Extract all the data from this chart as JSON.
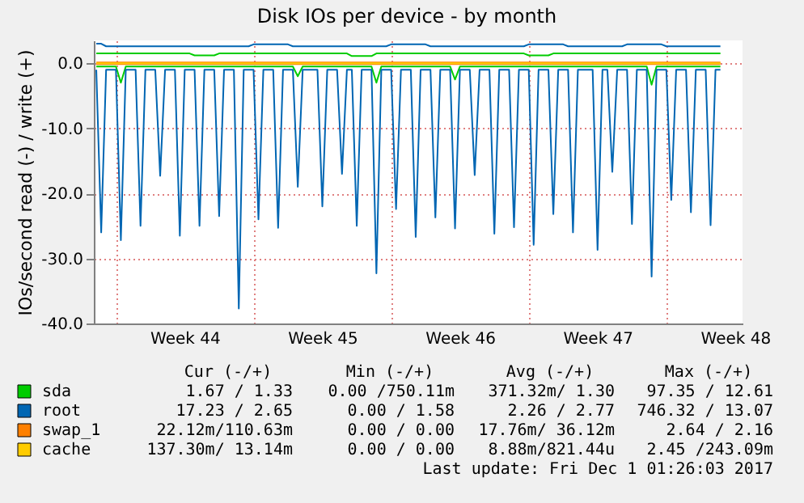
{
  "chart_data": {
    "type": "line",
    "title": "Disk IOs per device - by month",
    "ylabel": "IOs/second read (-) / write (+)",
    "categories": [
      null,
      null,
      null,
      null,
      null,
      null,
      null,
      null,
      null,
      null,
      null,
      null,
      null,
      null,
      null,
      null,
      null,
      null,
      "Week 44",
      null,
      null,
      null,
      null,
      null,
      null,
      null,
      null,
      null,
      null,
      null,
      null,
      null,
      null,
      null,
      null,
      null,
      null,
      null,
      null,
      null,
      null,
      null,
      null,
      null,
      null,
      null,
      "Week 45",
      null,
      null,
      null,
      null,
      null,
      null,
      null,
      null,
      null,
      null,
      null,
      null,
      null,
      null,
      null,
      null,
      null,
      null,
      null,
      null,
      null,
      null,
      null,
      null,
      null,
      null,
      null,
      "Week 46",
      null,
      null,
      null,
      null,
      null,
      null,
      null,
      null,
      null,
      null,
      null,
      null,
      null,
      null,
      null,
      null,
      null,
      null,
      null,
      null,
      null,
      null,
      null,
      null,
      null,
      null,
      null,
      "Week 47",
      null,
      null,
      null,
      null,
      null,
      null,
      null,
      null,
      null,
      null,
      null,
      null,
      null,
      null,
      null,
      null,
      null,
      null,
      null,
      null,
      null,
      null,
      null,
      null,
      null,
      null,
      null,
      "Week 48",
      null
    ],
    "ylim": [
      -40,
      3.5
    ],
    "yticks": [
      {
        "value": -40,
        "label": "-40.0"
      },
      {
        "value": -30,
        "label": "-30.0"
      },
      {
        "value": -20,
        "label": "-20.0"
      },
      {
        "value": -10,
        "label": "-10.0"
      },
      {
        "value": 0,
        "label": "0.0"
      }
    ],
    "grid": true,
    "legend": "bottom",
    "series": [
      {
        "name": "sda",
        "color": "#00cc00",
        "values": [
          -0.5,
          -0.5,
          -0.5,
          -0.5,
          -0.5,
          -3,
          -0.5,
          -0.5,
          -0.5,
          -0.5,
          -0.5,
          -0.5,
          -0.5,
          -0.5,
          -0.5,
          -0.5,
          -0.5,
          -0.5,
          -0.5,
          -0.5,
          -0.5,
          -0.5,
          -0.5,
          -0.5,
          -0.5,
          -0.5,
          -0.5,
          -0.5,
          -0.5,
          -0.5,
          -0.5,
          -0.5,
          -0.5,
          -0.5,
          -0.5,
          -0.5,
          -0.5,
          -0.5,
          -0.5,
          -0.5,
          -0.5,
          -2,
          -0.5,
          -0.5,
          -0.5,
          -0.5,
          -0.5,
          -0.5,
          -0.5,
          -0.5,
          -0.5,
          -0.5,
          -0.5,
          -0.5,
          -0.5,
          -0.5,
          -0.5,
          -3,
          -0.5,
          -0.5,
          -0.5,
          -0.5,
          -0.5,
          -0.5,
          -0.5,
          -0.5,
          -0.5,
          -0.5,
          -0.5,
          -0.5,
          -0.5,
          -0.5,
          -0.5,
          -2.5,
          -0.5,
          -0.5,
          -0.5,
          -0.5,
          -0.5,
          -0.5,
          -0.5,
          -0.5,
          -0.5,
          -0.5,
          -0.5,
          -0.5,
          -0.5,
          -0.5,
          -0.5,
          -0.5,
          -0.5,
          -0.5,
          -0.5,
          -0.5,
          -0.5,
          -0.5,
          -0.5,
          -0.5,
          -0.5,
          -0.5,
          -0.5,
          -0.5,
          -0.5,
          -0.5,
          -0.5,
          -0.5,
          -0.5,
          -0.5,
          -0.5,
          -0.5,
          -0.5,
          -0.5,
          -0.5,
          -3.3,
          -0.5,
          -0.5,
          -0.5,
          -0.5,
          -0.5,
          -0.5,
          -0.5,
          -0.5,
          -0.5,
          -0.5,
          -0.5,
          -0.5,
          -0.5,
          -0.5,
          null,
          null,
          null,
          null
        ]
      },
      {
        "color": "#00cc00",
        "values": [
          1.5,
          1.5,
          1.5,
          1.5,
          1.5,
          1.5,
          1.5,
          1.5,
          1.5,
          1.5,
          1.5,
          1.5,
          1.5,
          1.5,
          1.5,
          1.5,
          1.5,
          1.5,
          1.5,
          1.5,
          1.2,
          1.2,
          1.2,
          1.2,
          1.2,
          1.5,
          1.5,
          1.5,
          1.5,
          1.5,
          1.5,
          1.5,
          1.5,
          1.5,
          1.5,
          1.5,
          1.5,
          1.5,
          1.5,
          1.5,
          1.5,
          1.5,
          1.5,
          1.5,
          1.5,
          1.5,
          1.5,
          1.5,
          1.5,
          1.5,
          1.5,
          1.5,
          1.1,
          1.1,
          1.1,
          1.1,
          1.1,
          1.5,
          1.5,
          1.5,
          1.5,
          1.5,
          1.5,
          1.5,
          1.5,
          1.5,
          1.5,
          1.5,
          1.5,
          1.5,
          1.5,
          1.5,
          1.5,
          1.5,
          1.5,
          1.5,
          1.5,
          1.5,
          1.5,
          1.5,
          1.5,
          1.5,
          1.5,
          1.5,
          1.5,
          1.5,
          1.5,
          1.5,
          1.2,
          1.2,
          1.2,
          1.2,
          1.2,
          1.5,
          1.5,
          1.5,
          1.5,
          1.5,
          1.5,
          1.5,
          1.5,
          1.5,
          1.5,
          1.5,
          1.5,
          1.5,
          1.5,
          1.5,
          1.5,
          1.5,
          1.5,
          1.5,
          1.5,
          1.5,
          1.5,
          1.5,
          1.5,
          1.5,
          1.5,
          1.5,
          1.5,
          1.5,
          1.5,
          1.5,
          1.5,
          1.5,
          1.5,
          1.5,
          null,
          null,
          null,
          null
        ]
      },
      {
        "name": "root",
        "color": "#0066b3",
        "values": [
          -1,
          -26,
          -1,
          -1,
          -1,
          -27.2,
          -1,
          -1,
          -1,
          -25,
          -1,
          -1,
          -1,
          -17.3,
          -1,
          -1,
          -1,
          -26.5,
          -1,
          -1,
          -1,
          -25,
          -1,
          -1,
          -1,
          -23.5,
          -1,
          -1,
          -1,
          -37.7,
          -1,
          -1,
          -1,
          -24,
          -1,
          -1,
          -1,
          -25.3,
          -1,
          -1,
          -1,
          -19,
          -1,
          -1,
          -1,
          -1,
          -22,
          -1,
          -1,
          -1,
          -17,
          -1,
          -1,
          -25,
          -1,
          -1,
          -1,
          -32.3,
          -1,
          -1,
          -1,
          -22.4,
          -1,
          -1,
          -1,
          -26.7,
          -1,
          -1,
          -1,
          -23.7,
          -1,
          -1,
          -1,
          -25.4,
          -1,
          -1,
          -1,
          -17.2,
          -1,
          -1,
          -1,
          -26.2,
          -1,
          -1,
          -1,
          -25.2,
          -1,
          -1,
          -1,
          -27.9,
          -1,
          -1,
          -1,
          -23.2,
          -1,
          -1,
          -1,
          -26,
          -1,
          -1,
          -1,
          -1,
          -28.7,
          -1,
          -1,
          -16.7,
          -1,
          -1,
          -1,
          -24.7,
          -1,
          -1,
          -1,
          -32.8,
          -1,
          -1,
          -1,
          -21,
          -1,
          -1,
          -1,
          -22.9,
          -1,
          -1,
          -1,
          -24.9,
          -1,
          -1,
          null,
          null,
          null,
          null
        ]
      },
      {
        "color": "#0066b3",
        "values": [
          3,
          3,
          2.6,
          2.6,
          2.6,
          2.6,
          2.6,
          2.6,
          2.6,
          2.6,
          2.6,
          2.6,
          2.6,
          2.6,
          2.6,
          2.6,
          2.6,
          2.6,
          2.6,
          2.6,
          2.6,
          2.6,
          2.6,
          2.6,
          2.6,
          2.6,
          2.6,
          2.6,
          2.6,
          2.6,
          2.6,
          2.6,
          2.9,
          2.9,
          2.9,
          2.9,
          2.9,
          2.9,
          2.9,
          2.9,
          2.6,
          2.6,
          2.6,
          2.6,
          2.6,
          2.6,
          2.6,
          2.6,
          2.6,
          2.6,
          2.6,
          2.6,
          2.6,
          2.6,
          2.6,
          2.6,
          2.6,
          2.6,
          2.6,
          2.6,
          2.9,
          2.9,
          2.9,
          2.9,
          2.9,
          2.9,
          2.9,
          2.9,
          2.6,
          2.6,
          2.6,
          2.6,
          2.6,
          2.6,
          2.6,
          2.6,
          2.6,
          2.6,
          2.6,
          2.6,
          2.6,
          2.6,
          2.6,
          2.6,
          2.6,
          2.6,
          2.6,
          2.6,
          2.9,
          2.9,
          2.9,
          2.9,
          2.9,
          2.9,
          2.9,
          2.9,
          2.6,
          2.6,
          2.6,
          2.6,
          2.6,
          2.6,
          2.6,
          2.6,
          2.6,
          2.6,
          2.6,
          2.6,
          2.9,
          2.9,
          2.9,
          2.9,
          2.9,
          2.9,
          2.9,
          2.9,
          2.6,
          2.6,
          2.6,
          2.6,
          2.6,
          2.6,
          2.6,
          2.6,
          2.6,
          2.6,
          2.6,
          2.6,
          null,
          null,
          null,
          null
        ]
      },
      {
        "name": "swap_1",
        "color": "#ff8000",
        "values": [
          0,
          0,
          0,
          0,
          0,
          0,
          0,
          0,
          0,
          0,
          0,
          0,
          0,
          0,
          0,
          0,
          0,
          0,
          0,
          0,
          0,
          0,
          0,
          0,
          0,
          0,
          0,
          0,
          0,
          0,
          0,
          0,
          0,
          0,
          0,
          0,
          0,
          0,
          0,
          0,
          0,
          0,
          0,
          0,
          0,
          0,
          0,
          0,
          0,
          0,
          0,
          0,
          0,
          0,
          0,
          0,
          0,
          0,
          0,
          0,
          0,
          0,
          0,
          0,
          0,
          0,
          0,
          0,
          0,
          0,
          0,
          0,
          0,
          0,
          0,
          0,
          0,
          0,
          0,
          0,
          0,
          0,
          0,
          0,
          0,
          0,
          0,
          0,
          0,
          0,
          0,
          0,
          0,
          0,
          0,
          0,
          0,
          0,
          0,
          0,
          0,
          0,
          0,
          0,
          0,
          0,
          0,
          0,
          0,
          0,
          0,
          0,
          0,
          0,
          0,
          0,
          0,
          0,
          0,
          0,
          0,
          0,
          0,
          0,
          0,
          0,
          0,
          0,
          null,
          null,
          null,
          null
        ]
      },
      {
        "name": "cache",
        "color": "#ffcc00",
        "values": [
          0,
          0,
          0,
          0,
          0,
          0,
          0,
          0,
          0,
          0,
          0,
          0,
          0,
          0,
          0,
          0,
          0,
          0,
          0,
          0,
          0,
          0,
          0,
          0,
          0,
          0,
          0,
          0,
          0,
          0,
          0,
          0,
          0,
          0,
          0,
          0,
          0,
          0,
          0,
          0,
          0,
          0,
          0,
          0,
          0,
          0,
          0,
          0,
          0,
          0,
          0,
          0,
          0,
          0,
          0,
          0,
          0,
          0,
          0,
          0,
          0,
          0,
          0,
          0,
          0,
          0,
          0,
          0,
          0,
          0,
          0,
          0,
          0,
          0,
          0,
          0,
          0,
          0,
          0,
          0,
          0,
          0,
          0,
          0,
          0,
          0,
          0,
          0,
          0,
          0,
          0,
          0,
          0,
          0,
          0,
          0,
          0,
          0,
          0,
          0,
          0,
          0,
          0,
          0,
          0,
          0,
          0,
          0,
          0,
          0,
          0,
          0,
          0,
          0,
          0,
          0,
          0,
          0,
          0,
          0,
          0,
          0,
          0,
          0,
          0,
          0,
          0,
          0,
          null,
          null,
          null,
          null
        ]
      }
    ],
    "annotations": [
      "Cur (-/+)",
      "Min (-/+)",
      "Avg (-/+)",
      "Max (-/+)",
      "1.67 / 1.33",
      "0.00 /750.11m",
      "371.32m/ 1.30",
      "97.35 / 12.61",
      "17.23 / 2.65",
      "0.00 / 1.58",
      "2.26 / 2.77",
      "746.32 / 13.07",
      "22.12m/110.63m",
      "0.00 / 0.00",
      "17.76m/ 36.12m",
      "2.64 / 2.16",
      "137.30m/ 13.14m",
      "0.00 / 0.00",
      "8.88m/821.44u",
      "2.45 /243.09m",
      "Last update: Fri Dec  1 01:26:03 2017"
    ]
  }
}
